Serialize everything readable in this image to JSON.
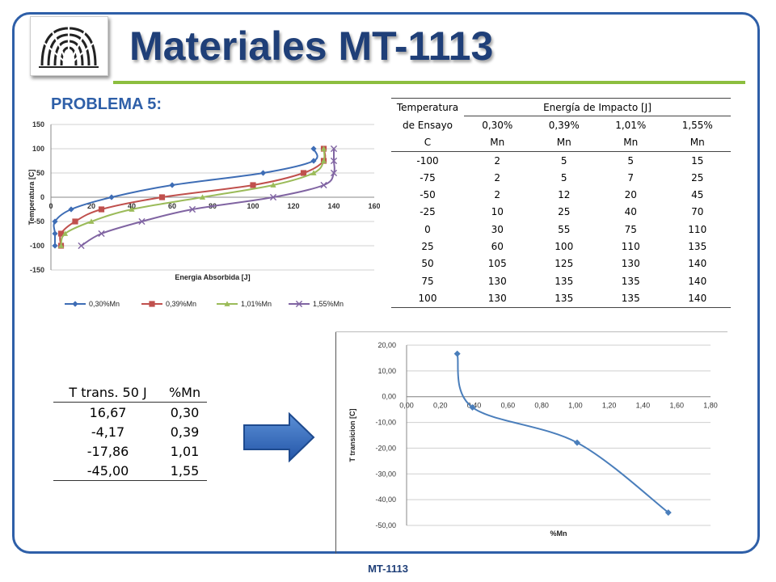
{
  "header": {
    "title": "Materiales MT-1113",
    "problem_label": "PROBLEMA 5:"
  },
  "footer": {
    "label": "MT-1113"
  },
  "impact_table": {
    "head_temp_1": "Temperatura",
    "head_energy": "Energía de Impacto [J]",
    "head_temp_2": "de Ensayo",
    "head_temp_3": "C",
    "mn_pct": [
      "0,30%",
      "0,39%",
      "1,01%",
      "1,55%"
    ],
    "mn_label": [
      "Mn",
      "Mn",
      "Mn",
      "Mn"
    ],
    "rows": [
      [
        "-100",
        "2",
        "5",
        "5",
        "15"
      ],
      [
        "-75",
        "2",
        "5",
        "7",
        "25"
      ],
      [
        "-50",
        "2",
        "12",
        "20",
        "45"
      ],
      [
        "-25",
        "10",
        "25",
        "40",
        "70"
      ],
      [
        "0",
        "30",
        "55",
        "75",
        "110"
      ],
      [
        "25",
        "60",
        "100",
        "110",
        "135"
      ],
      [
        "50",
        "105",
        "125",
        "130",
        "140"
      ],
      [
        "75",
        "130",
        "135",
        "135",
        "140"
      ],
      [
        "100",
        "130",
        "135",
        "135",
        "140"
      ]
    ]
  },
  "transition_table": {
    "headers": [
      "T trans. 50 J",
      "%Mn"
    ],
    "rows": [
      [
        "16,67",
        "0,30"
      ],
      [
        "-4,17",
        "0,39"
      ],
      [
        "-17,86",
        "1,01"
      ],
      [
        "-45,00",
        "1,55"
      ]
    ]
  },
  "chart_data": [
    {
      "type": "line",
      "xlabel": "Energia Absorbida [J]",
      "ylabel": "Temperatura [C]",
      "xlim": [
        0,
        160
      ],
      "ylim": [
        -150,
        150
      ],
      "xticks": [
        "0",
        "20",
        "40",
        "60",
        "80",
        "100",
        "120",
        "140",
        "160"
      ],
      "yticks": [
        "150",
        "100",
        "50",
        "0",
        "-50",
        "-100",
        "-150"
      ],
      "grid": "horizontal",
      "legend": "bottom",
      "series": [
        {
          "name": "0,30%Mn",
          "color": "#3e6db5",
          "marker": "diamond",
          "x": [
            2,
            2,
            2,
            10,
            30,
            60,
            105,
            130,
            130
          ],
          "y": [
            -100,
            -75,
            -50,
            -25,
            0,
            25,
            50,
            75,
            100
          ]
        },
        {
          "name": "0,39%Mn",
          "color": "#c0504d",
          "marker": "square",
          "x": [
            5,
            5,
            12,
            25,
            55,
            100,
            125,
            135,
            135
          ],
          "y": [
            -100,
            -75,
            -50,
            -25,
            0,
            25,
            50,
            75,
            100
          ]
        },
        {
          "name": "1,01%Mn",
          "color": "#9bbb59",
          "marker": "triangle",
          "x": [
            5,
            7,
            20,
            40,
            75,
            110,
            130,
            135,
            135
          ],
          "y": [
            -100,
            -75,
            -50,
            -25,
            0,
            25,
            50,
            75,
            100
          ]
        },
        {
          "name": "1,55%Mn",
          "color": "#8064a2",
          "marker": "x",
          "x": [
            15,
            25,
            45,
            70,
            110,
            135,
            140,
            140,
            140
          ],
          "y": [
            -100,
            -75,
            -50,
            -25,
            0,
            25,
            50,
            75,
            100
          ]
        }
      ]
    },
    {
      "type": "line",
      "xlabel": "%Mn",
      "ylabel": "T transicion [C]",
      "xlim": [
        0,
        1.8
      ],
      "ylim": [
        -50,
        20
      ],
      "xticks": [
        "0,00",
        "0,20",
        "0,40",
        "0,60",
        "0,80",
        "1,00",
        "1,20",
        "1,40",
        "1,60",
        "1,80"
      ],
      "yticks": [
        "20,00",
        "10,00",
        "0,00",
        "-10,00",
        "-20,00",
        "-30,00",
        "-40,00",
        "-50,00"
      ],
      "grid": "horizontal",
      "series": [
        {
          "color": "#4a7ebb",
          "marker": "diamond",
          "x": [
            0.3,
            0.39,
            1.01,
            1.55
          ],
          "y": [
            16.67,
            -4.17,
            -17.86,
            -45.0
          ]
        }
      ]
    }
  ],
  "colors": {
    "frame": "#2e5fa8",
    "title": "#1f3f78",
    "accent_line": "#8cbe3f",
    "arrow": "#2e6bbd"
  },
  "icons": {
    "logo": "university-logo-icon",
    "arrow": "right-arrow-icon"
  }
}
